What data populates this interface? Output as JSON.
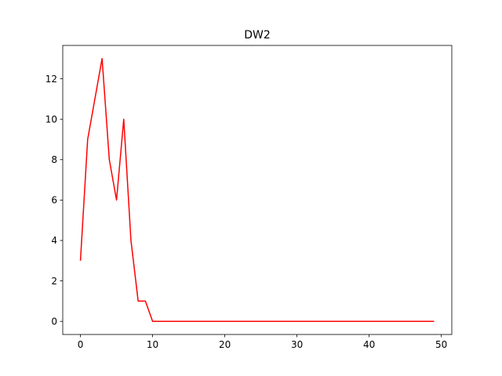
{
  "chart_data": {
    "type": "line",
    "title": "DW2",
    "xlabel": "",
    "ylabel": "",
    "xlim": [
      -2.45,
      51.45
    ],
    "ylim": [
      -0.65,
      13.65
    ],
    "x_ticks": [
      0,
      10,
      20,
      30,
      40,
      50
    ],
    "y_ticks": [
      0,
      2,
      4,
      6,
      8,
      10,
      12
    ],
    "x_tick_labels": [
      "0",
      "10",
      "20",
      "30",
      "40",
      "50"
    ],
    "y_tick_labels": [
      "0",
      "2",
      "4",
      "6",
      "8",
      "10",
      "12"
    ],
    "grid": false,
    "legend": "none",
    "series": [
      {
        "color": "#ff0000",
        "x": [
          0,
          1,
          2,
          3,
          4,
          5,
          6,
          7,
          8,
          9,
          10,
          11,
          12,
          13,
          14,
          15,
          16,
          17,
          18,
          19,
          20,
          21,
          22,
          23,
          24,
          25,
          26,
          27,
          28,
          29,
          30,
          31,
          32,
          33,
          34,
          35,
          36,
          37,
          38,
          39,
          40,
          41,
          42,
          43,
          44,
          45,
          46,
          47,
          48,
          49
        ],
        "values": [
          3,
          9,
          11,
          13,
          8,
          6,
          10,
          4,
          1,
          1,
          0,
          0,
          0,
          0,
          0,
          0,
          0,
          0,
          0,
          0,
          0,
          0,
          0,
          0,
          0,
          0,
          0,
          0,
          0,
          0,
          0,
          0,
          0,
          0,
          0,
          0,
          0,
          0,
          0,
          0,
          0,
          0,
          0,
          0,
          0,
          0,
          0,
          0,
          0,
          0
        ]
      }
    ]
  }
}
